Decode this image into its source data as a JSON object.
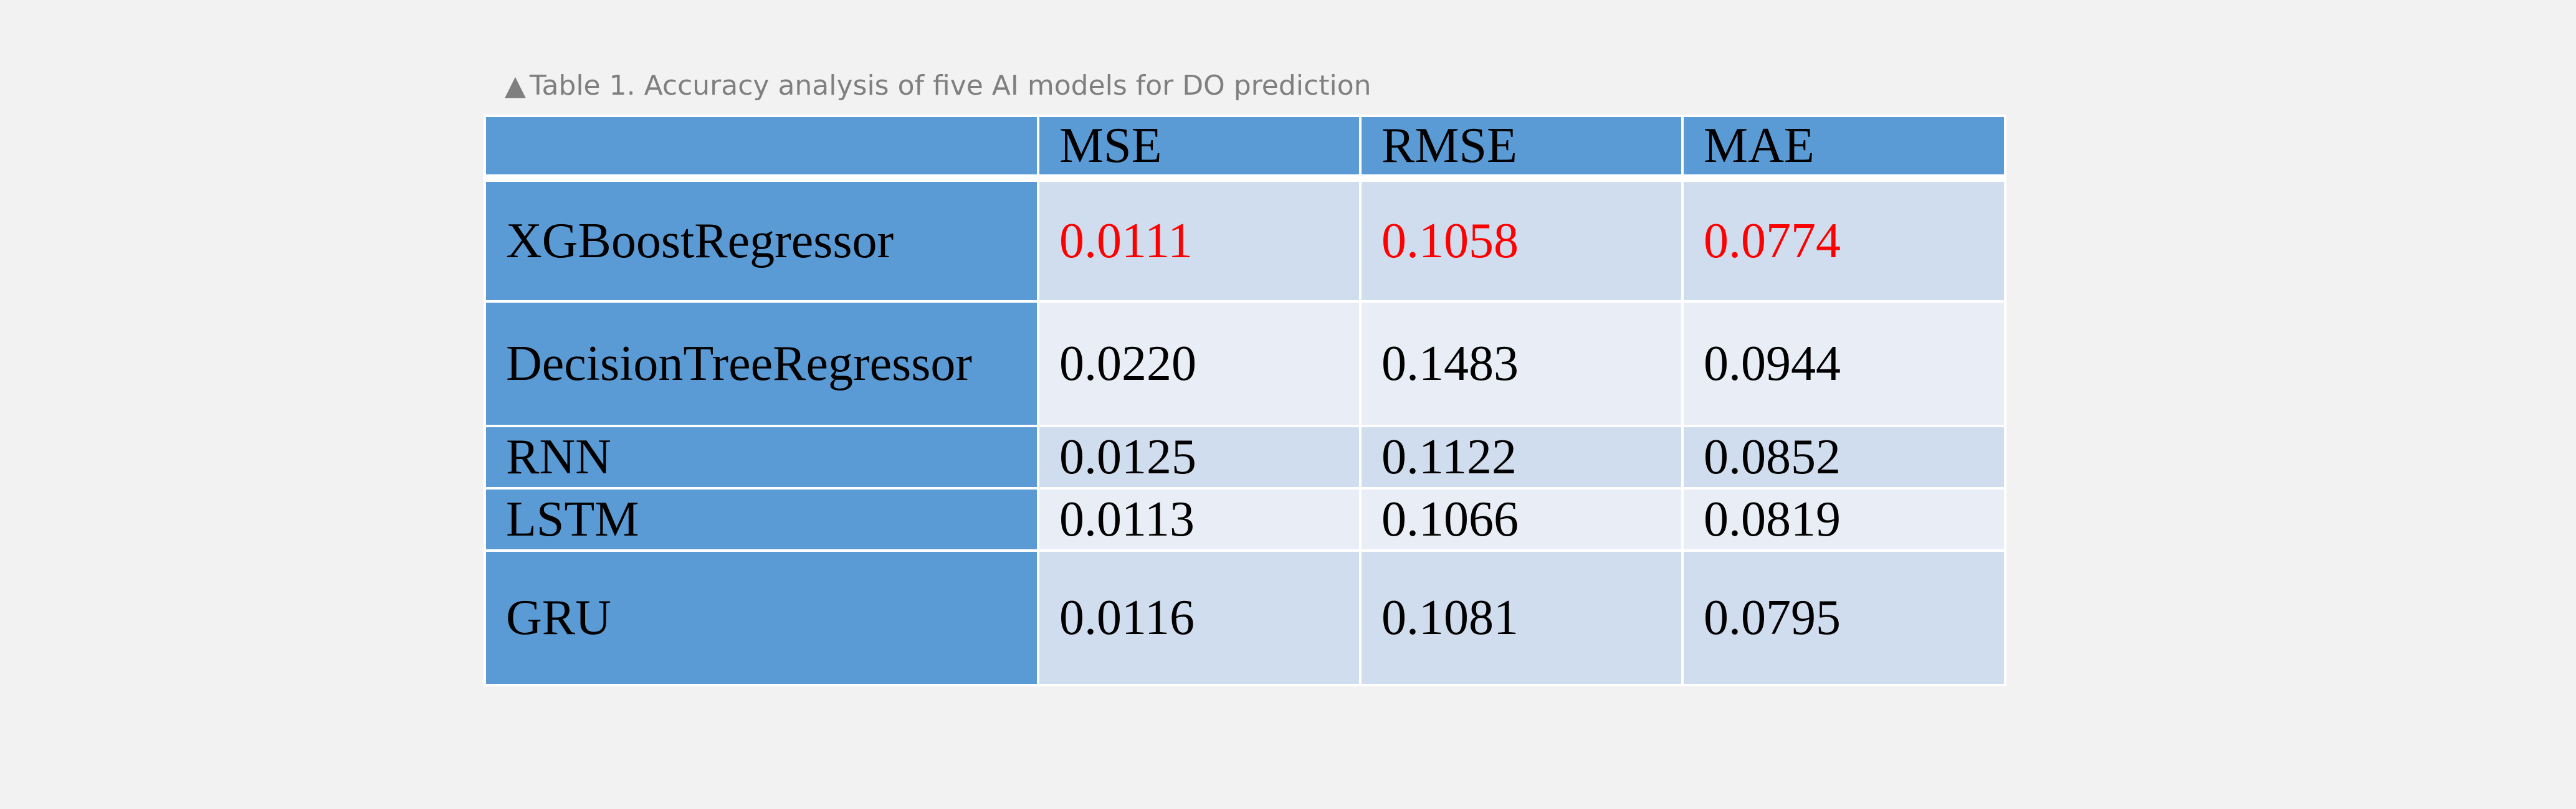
{
  "caption": {
    "marker": "▲",
    "text": "Table 1. Accuracy analysis of five AI models for DO prediction"
  },
  "table": {
    "headers": [
      "",
      "MSE",
      "RMSE",
      "MAE"
    ],
    "rows": [
      {
        "model": "XGBoostRegressor",
        "mse": "0.0111",
        "rmse": "0.1058",
        "mae": "0.0774",
        "highlight": true
      },
      {
        "model": "DecisionTreeRegressor",
        "mse": "0.0220",
        "rmse": "0.1483",
        "mae": "0.0944",
        "highlight": false
      },
      {
        "model": "RNN",
        "mse": "0.0125",
        "rmse": "0.1122",
        "mae": "0.0852",
        "highlight": false
      },
      {
        "model": "LSTM",
        "mse": "0.0113",
        "rmse": "0.1066",
        "mae": "0.0819",
        "highlight": false
      },
      {
        "model": "GRU",
        "mse": "0.0116",
        "rmse": "0.1081",
        "mae": "0.0795",
        "highlight": false
      }
    ]
  },
  "colors": {
    "background": "#f2f2f2",
    "header_fill": "#5b9bd5",
    "band_dark": "#d0ddef",
    "band_light": "#e9edf5",
    "caption_text": "#7f7f7f",
    "highlight_text": "#ff0000"
  }
}
